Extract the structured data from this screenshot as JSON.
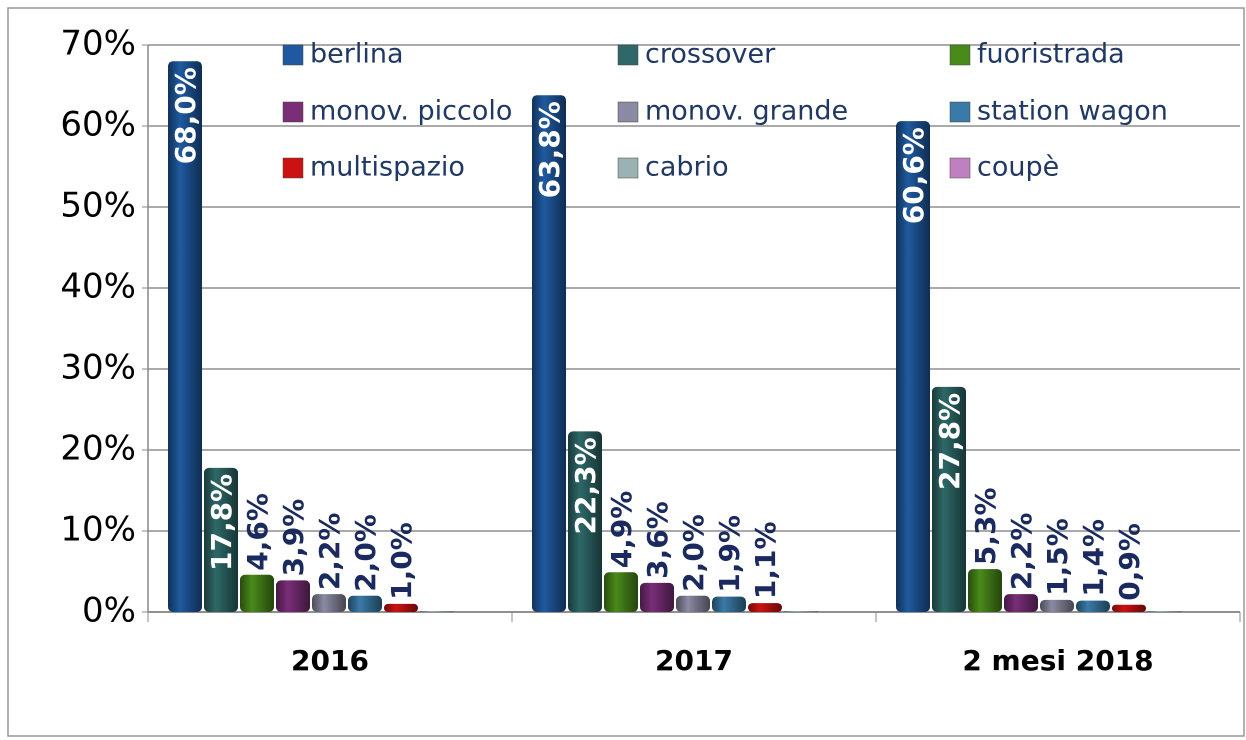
{
  "chart_data": {
    "type": "bar",
    "categories": [
      "2016",
      "2017",
      "2 mesi 2018"
    ],
    "series": [
      {
        "name": "berlina",
        "color": "#1f5aa0",
        "values": [
          68.0,
          63.8,
          60.6
        ],
        "value_labels": [
          "68,0%",
          "63,8%",
          "60,6%"
        ]
      },
      {
        "name": "crossover",
        "color": "#2e6868",
        "values": [
          17.8,
          22.3,
          27.8
        ],
        "value_labels": [
          "17,8%",
          "22,3%",
          "27,8%"
        ]
      },
      {
        "name": "fuoristrada",
        "color": "#4a8a1a",
        "values": [
          4.6,
          4.9,
          5.3
        ],
        "value_labels": [
          "4,6%",
          "4,9%",
          "5,3%"
        ]
      },
      {
        "name": "monov. piccolo",
        "color": "#7a2e78",
        "values": [
          3.9,
          3.6,
          2.2
        ],
        "value_labels": [
          "3,9%",
          "3,6%",
          "2,2%"
        ]
      },
      {
        "name": "monov. grande",
        "color": "#8a8aa2",
        "values": [
          2.2,
          2.0,
          1.5
        ],
        "value_labels": [
          "2,2%",
          "2,0%",
          "1,5%"
        ]
      },
      {
        "name": "station wagon",
        "color": "#3a7aa8",
        "values": [
          2.0,
          1.9,
          1.4
        ],
        "value_labels": [
          "2,0%",
          "1,9%",
          "1,4%"
        ]
      },
      {
        "name": "multispazio",
        "color": "#cc1111",
        "values": [
          1.0,
          1.1,
          0.9
        ],
        "value_labels": [
          "1,0%",
          "1,1%",
          "0,9%"
        ]
      },
      {
        "name": "cabrio",
        "color": "#9ab2b2",
        "values": [
          0.1,
          0.1,
          0.1
        ]
      },
      {
        "name": "coupè",
        "color": "#c080c0",
        "values": [
          0.0,
          0.0,
          0.0
        ]
      }
    ],
    "ylim": [
      0,
      70
    ],
    "yticks": [
      {
        "value": 0,
        "label": "0%"
      },
      {
        "value": 10,
        "label": "10%"
      },
      {
        "value": 20,
        "label": "20%"
      },
      {
        "value": 30,
        "label": "30%"
      },
      {
        "value": 40,
        "label": "40%"
      },
      {
        "value": 50,
        "label": "50%"
      },
      {
        "value": 60,
        "label": "60%"
      },
      {
        "value": 70,
        "label": "70%"
      }
    ],
    "grid": true
  }
}
